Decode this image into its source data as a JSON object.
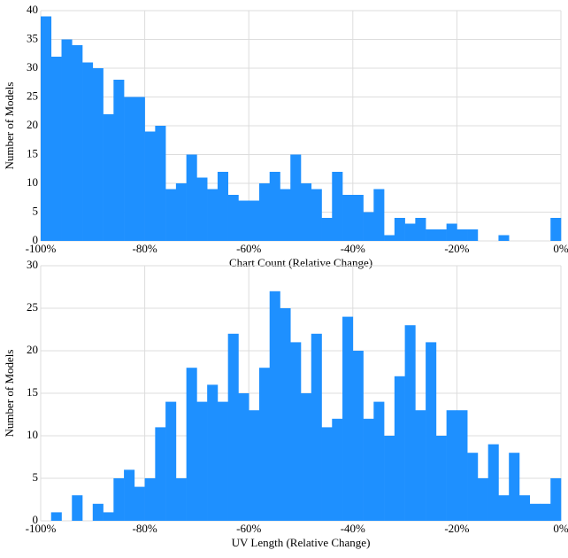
{
  "chart_data": [
    {
      "type": "histogram",
      "xlabel": "Chart Count (Relative Change)",
      "ylabel": "Number of Models",
      "color": "#1e90ff",
      "grid": true,
      "bins": [
        -100,
        -98,
        -96,
        -94,
        -92,
        -90,
        -88,
        -86,
        -84,
        -82,
        -80,
        -78,
        -76,
        -74,
        -72,
        -70,
        -68,
        -66,
        -64,
        -62,
        -60,
        -58,
        -56,
        -54,
        -52,
        -50,
        -48,
        -46,
        -44,
        -42,
        -40,
        -38,
        -36,
        -34,
        -32,
        -30,
        -28,
        -26,
        -24,
        -22,
        -20,
        -18,
        -16,
        -14,
        -12,
        -10,
        -8,
        -6,
        -4,
        -2,
        0
      ],
      "counts": [
        39,
        32,
        35,
        34,
        31,
        30,
        22,
        28,
        25,
        25,
        19,
        20,
        9,
        10,
        15,
        11,
        9,
        12,
        8,
        7,
        7,
        10,
        12,
        9,
        15,
        10,
        9,
        4,
        12,
        8,
        8,
        5,
        9,
        1,
        4,
        3,
        4,
        2,
        2,
        3,
        2,
        2,
        0,
        0,
        1,
        0,
        0,
        0,
        0,
        4
      ],
      "xlim": [
        -100,
        0
      ],
      "ylim": [
        0,
        40
      ],
      "xticks": [
        {
          "value": -100,
          "label": "-100%"
        },
        {
          "value": -80,
          "label": "-80%"
        },
        {
          "value": -60,
          "label": "-60%"
        },
        {
          "value": -40,
          "label": "-40%"
        },
        {
          "value": -20,
          "label": "-20%"
        },
        {
          "value": 0,
          "label": "0%"
        }
      ],
      "yticks": [
        0,
        5,
        10,
        15,
        20,
        25,
        30,
        35,
        40
      ]
    },
    {
      "type": "histogram",
      "xlabel": "UV Length (Relative Change)",
      "ylabel": "Number of Models",
      "color": "#1e90ff",
      "grid": true,
      "bins": [
        -100,
        -98,
        -96,
        -94,
        -92,
        -90,
        -88,
        -86,
        -84,
        -82,
        -80,
        -78,
        -76,
        -74,
        -72,
        -70,
        -68,
        -66,
        -64,
        -62,
        -60,
        -58,
        -56,
        -54,
        -52,
        -50,
        -48,
        -46,
        -44,
        -42,
        -40,
        -38,
        -36,
        -34,
        -32,
        -30,
        -28,
        -26,
        -24,
        -22,
        -20,
        -18,
        -16,
        -14,
        -12,
        -10,
        -8,
        -6,
        -4,
        -2,
        0
      ],
      "counts": [
        0,
        1,
        0,
        3,
        0,
        2,
        1,
        5,
        6,
        4,
        5,
        11,
        14,
        5,
        18,
        14,
        16,
        14,
        22,
        15,
        13,
        18,
        27,
        25,
        21,
        15,
        22,
        11,
        12,
        24,
        20,
        12,
        14,
        10,
        17,
        23,
        13,
        21,
        10,
        13,
        13,
        8,
        5,
        9,
        3,
        8,
        3,
        2,
        2,
        5
      ],
      "xlim": [
        -100,
        0
      ],
      "ylim": [
        0,
        30
      ],
      "xticks": [
        {
          "value": -100,
          "label": "-100%"
        },
        {
          "value": -80,
          "label": "-80%"
        },
        {
          "value": -60,
          "label": "-60%"
        },
        {
          "value": -40,
          "label": "-40%"
        },
        {
          "value": -20,
          "label": "-20%"
        },
        {
          "value": 0,
          "label": "0%"
        }
      ],
      "yticks": [
        0,
        5,
        10,
        15,
        20,
        25,
        30
      ]
    }
  ]
}
